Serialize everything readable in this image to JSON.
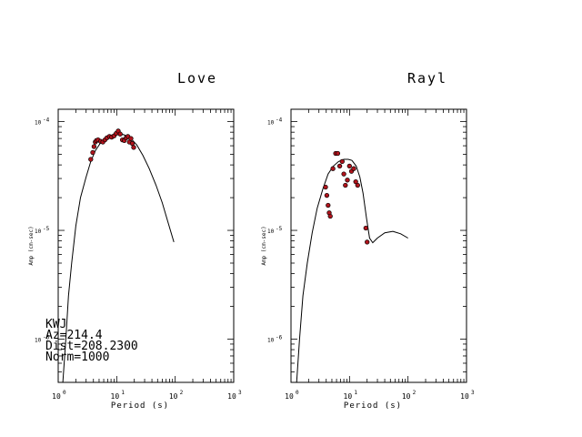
{
  "chart_data": [
    {
      "type": "scatter",
      "title": "Love",
      "xlabel": "Period (s)",
      "ylabel": "Amp (cm-sec)",
      "x_scale": "log",
      "y_scale": "log",
      "xlim": [
        1,
        1000
      ],
      "ylim": [
        4e-07,
        0.00013
      ],
      "x_ticks": [
        {
          "base": "10",
          "exp": "0"
        },
        {
          "base": "10",
          "exp": "1"
        },
        {
          "base": "10",
          "exp": "2"
        },
        {
          "base": "10",
          "exp": "3"
        }
      ],
      "y_ticks": [
        {
          "base": "10",
          "exp": "-4"
        },
        {
          "base": "10",
          "exp": "-5"
        },
        {
          "base": "10",
          "exp": "-6"
        }
      ],
      "info": [
        "KWJ",
        "Az=214.4",
        "Dist=208.2300",
        "Norm=1000"
      ],
      "series": [
        {
          "kind": "line",
          "x": [
            1.2,
            1.35,
            1.5,
            1.7,
            2.0,
            2.4,
            3.0,
            3.6,
            4.3,
            5.2,
            6.5,
            8.0,
            10,
            13,
            17,
            22,
            28,
            36,
            47,
            60,
            75,
            95
          ],
          "y": [
            4e-07,
            1e-06,
            2.5e-06,
            5e-06,
            1.1e-05,
            2e-05,
            3.1e-05,
            4.3e-05,
            5.4e-05,
            6.3e-05,
            7e-05,
            7.5e-05,
            7.7e-05,
            7.6e-05,
            7.1e-05,
            6.1e-05,
            4.9e-05,
            3.7e-05,
            2.6e-05,
            1.8e-05,
            1.2e-05,
            7.8e-06
          ]
        },
        {
          "kind": "points",
          "x": [
            3.6,
            3.9,
            4.1,
            4.3,
            4.5,
            4.8,
            5.3,
            5.8,
            6.3,
            6.8,
            7.5,
            8.2,
            9.0,
            9.8,
            10.6,
            11.5,
            12.5,
            13.5,
            14.5,
            15.5,
            16.5,
            17.5,
            18.5,
            19.5
          ],
          "y": [
            4.5e-05,
            5.2e-05,
            5.9e-05,
            6.5e-05,
            6.7e-05,
            6.8e-05,
            6.6e-05,
            6.5e-05,
            6.8e-05,
            7.1e-05,
            7.3e-05,
            7.2e-05,
            7.4e-05,
            7.8e-05,
            8.2e-05,
            7.7e-05,
            6.8e-05,
            6.7e-05,
            7.1e-05,
            7.3e-05,
            6.5e-05,
            7e-05,
            6.3e-05,
            5.8e-05
          ]
        }
      ]
    },
    {
      "type": "scatter",
      "title": "Rayl",
      "xlabel": "Period (s)",
      "ylabel": "Amp (cm-sec)",
      "x_scale": "log",
      "y_scale": "log",
      "xlim": [
        1,
        1000
      ],
      "ylim": [
        4e-07,
        0.00013
      ],
      "x_ticks": [
        {
          "base": "10",
          "exp": "0"
        },
        {
          "base": "10",
          "exp": "1"
        },
        {
          "base": "10",
          "exp": "2"
        },
        {
          "base": "10",
          "exp": "3"
        }
      ],
      "y_ticks": [
        {
          "base": "10",
          "exp": "-4"
        },
        {
          "base": "10",
          "exp": "-5"
        },
        {
          "base": "10",
          "exp": "-6"
        }
      ],
      "series": [
        {
          "kind": "line",
          "x": [
            1.25,
            1.4,
            1.6,
            1.9,
            2.3,
            2.8,
            3.5,
            4.3,
            5.3,
            6.5,
            8.0,
            9.5,
            11,
            13,
            15,
            17,
            19.5,
            22,
            25,
            30,
            40,
            55,
            75,
            100
          ],
          "y": [
            4e-07,
            1e-06,
            2.5e-06,
            5e-06,
            9.5e-06,
            1.6e-05,
            2.4e-05,
            3.3e-05,
            3.9e-05,
            4.3e-05,
            4.5e-05,
            4.5e-05,
            4.4e-05,
            3.9e-05,
            3.1e-05,
            2.2e-05,
            1.3e-05,
            8.5e-06,
            7.7e-06,
            8.5e-06,
            9.5e-06,
            9.8e-06,
            9.3e-06,
            8.5e-06
          ]
        },
        {
          "kind": "points",
          "x": [
            3.9,
            4.1,
            4.3,
            4.5,
            4.7,
            5.2,
            5.8,
            6.3,
            6.8,
            7.5,
            8.0,
            8.5,
            9.2,
            10.0,
            10.8,
            11.8,
            12.8,
            13.8,
            19.0,
            20.0
          ],
          "y": [
            2.5e-05,
            2.1e-05,
            1.7e-05,
            1.45e-05,
            1.35e-05,
            3.7e-05,
            5.1e-05,
            5.1e-05,
            3.9e-05,
            4.3e-05,
            3.3e-05,
            2.6e-05,
            2.9e-05,
            3.9e-05,
            3.5e-05,
            3.7e-05,
            2.8e-05,
            2.6e-05,
            1.05e-05,
            7.8e-06
          ]
        }
      ]
    }
  ]
}
